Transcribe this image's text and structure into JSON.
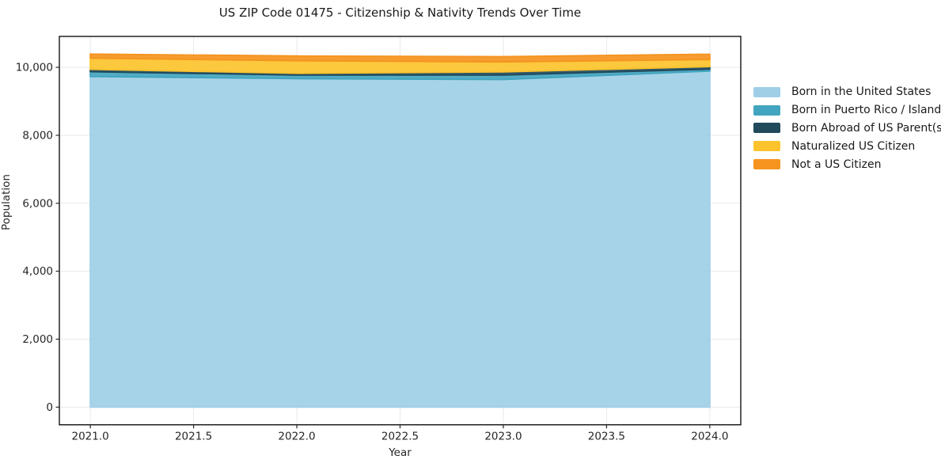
{
  "chart": {
    "title": "US ZIP Code 01475 - Citizenship & Nativity Trends Over Time",
    "xlabel": "Year",
    "ylabel": "Population"
  },
  "chart_data": {
    "type": "area",
    "stacked": true,
    "title": "US ZIP Code 01475 - Citizenship & Nativity Trends Over Time",
    "xlabel": "Year",
    "ylabel": "Population",
    "x": [
      2021,
      2022,
      2023,
      2024
    ],
    "series": [
      {
        "name": "Born in the United States",
        "color": "#9FCFE7",
        "values": [
          9730,
          9665,
          9640,
          9890
        ]
      },
      {
        "name": "Born in Puerto Rico / Islands",
        "color": "#42A5BF",
        "values": [
          140,
          105,
          130,
          55
        ]
      },
      {
        "name": "Born Abroad of US Parent(s)",
        "color": "#214A5C",
        "values": [
          70,
          55,
          95,
          75
        ]
      },
      {
        "name": "Naturalized US Citizen",
        "color": "#FCC32D",
        "values": [
          330,
          370,
          295,
          210
        ]
      },
      {
        "name": "Not a US Citizen",
        "color": "#F5941E",
        "values": [
          120,
          140,
          155,
          155
        ]
      }
    ],
    "xticks": {
      "values": [
        2021.0,
        2021.5,
        2022.0,
        2022.5,
        2023.0,
        2023.5,
        2024.0
      ],
      "labels": [
        "2021.0",
        "2021.5",
        "2022.0",
        "2022.5",
        "2023.0",
        "2023.5",
        "2024.0"
      ]
    },
    "yticks": {
      "values": [
        0,
        2000,
        4000,
        6000,
        8000,
        10000
      ],
      "labels": [
        "0",
        "2,000",
        "4,000",
        "6,000",
        "8,000",
        "10,000"
      ]
    },
    "xlim": [
      2020.85,
      2024.15
    ],
    "ylim": [
      -520,
      10910
    ],
    "grid": true,
    "grid_color": "#e9e9e9",
    "spine_color": "#000000",
    "tick_color": "#262626",
    "fill_opacity": 0.92,
    "legend_position": "right"
  }
}
